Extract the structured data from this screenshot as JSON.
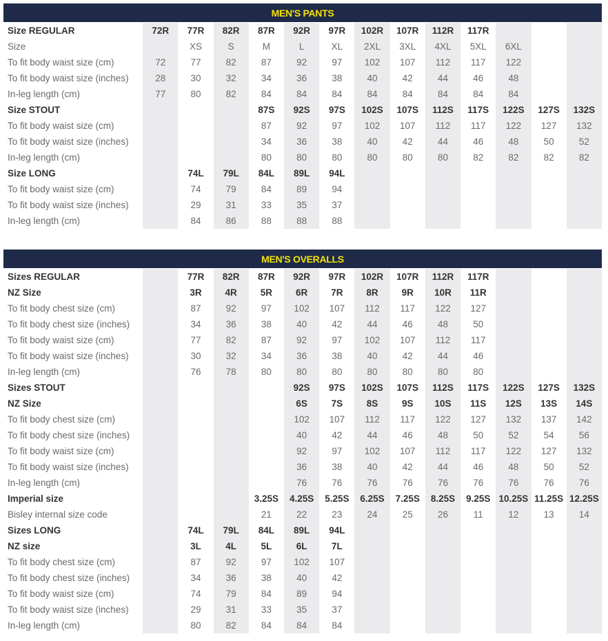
{
  "sections": [
    {
      "title": "MEN'S PANTS",
      "colors": {
        "header_bg": "#1e2a47",
        "header_text": "#f5e10a",
        "shade": "#ebebed"
      },
      "rows": [
        {
          "label": "Size REGULAR",
          "bold": true,
          "cells": [
            "72R",
            "77R",
            "82R",
            "87R",
            "92R",
            "97R",
            "102R",
            "107R",
            "112R",
            "117R",
            "",
            "",
            ""
          ]
        },
        {
          "label": "Size",
          "bold": false,
          "cells": [
            "",
            "XS",
            "S",
            "M",
            "L",
            "XL",
            "2XL",
            "3XL",
            "4XL",
            "5XL",
            "6XL",
            "",
            ""
          ]
        },
        {
          "label": "To fit body waist size (cm)",
          "bold": false,
          "cells": [
            "72",
            "77",
            "82",
            "87",
            "92",
            "97",
            "102",
            "107",
            "112",
            "117",
            "122",
            "",
            ""
          ]
        },
        {
          "label": "To fit body waist size (inches)",
          "bold": false,
          "cells": [
            "28",
            "30",
            "32",
            "34",
            "36",
            "38",
            "40",
            "42",
            "44",
            "46",
            "48",
            "",
            ""
          ]
        },
        {
          "label": "In-leg length (cm)",
          "bold": false,
          "cells": [
            "77",
            "80",
            "82",
            "84",
            "84",
            "84",
            "84",
            "84",
            "84",
            "84",
            "84",
            "",
            ""
          ]
        },
        {
          "label": "Size STOUT",
          "bold": true,
          "cells": [
            "",
            "",
            "",
            "87S",
            "92S",
            "97S",
            "102S",
            "107S",
            "112S",
            "117S",
            "122S",
            "127S",
            "132S"
          ]
        },
        {
          "label": "To fit body waist size (cm)",
          "bold": false,
          "cells": [
            "",
            "",
            "",
            "87",
            "92",
            "97",
            "102",
            "107",
            "112",
            "117",
            "122",
            "127",
            "132"
          ]
        },
        {
          "label": "To fit body waist size (inches)",
          "bold": false,
          "cells": [
            "",
            "",
            "",
            "34",
            "36",
            "38",
            "40",
            "42",
            "44",
            "46",
            "48",
            "50",
            "52"
          ]
        },
        {
          "label": "In-leg length (cm)",
          "bold": false,
          "cells": [
            "",
            "",
            "",
            "80",
            "80",
            "80",
            "80",
            "80",
            "80",
            "82",
            "82",
            "82",
            "82"
          ]
        },
        {
          "label": "Size LONG",
          "bold": true,
          "cells": [
            "",
            "74L",
            "79L",
            "84L",
            "89L",
            "94L",
            "",
            "",
            "",
            "",
            "",
            "",
            ""
          ]
        },
        {
          "label": "To fit body waist size (cm)",
          "bold": false,
          "cells": [
            "",
            "74",
            "79",
            "84",
            "89",
            "94",
            "",
            "",
            "",
            "",
            "",
            "",
            ""
          ]
        },
        {
          "label": "To fit body waist size (inches)",
          "bold": false,
          "cells": [
            "",
            "29",
            "31",
            "33",
            "35",
            "37",
            "",
            "",
            "",
            "",
            "",
            "",
            ""
          ]
        },
        {
          "label": "In-leg length (cm)",
          "bold": false,
          "cells": [
            "",
            "84",
            "86",
            "88",
            "88",
            "88",
            "",
            "",
            "",
            "",
            "",
            "",
            ""
          ]
        }
      ]
    },
    {
      "title": "MEN'S OVERALLS",
      "rows": [
        {
          "label": "Sizes REGULAR",
          "bold": true,
          "cells": [
            "",
            "77R",
            "82R",
            "87R",
            "92R",
            "97R",
            "102R",
            "107R",
            "112R",
            "117R",
            "",
            "",
            ""
          ]
        },
        {
          "label": "NZ Size",
          "bold": true,
          "cells": [
            "",
            "3R",
            "4R",
            "5R",
            "6R",
            "7R",
            "8R",
            "9R",
            "10R",
            "11R",
            "",
            "",
            ""
          ]
        },
        {
          "label": "To fit body chest size (cm)",
          "bold": false,
          "cells": [
            "",
            "87",
            "92",
            "97",
            "102",
            "107",
            "112",
            "117",
            "122",
            "127",
            "",
            "",
            ""
          ]
        },
        {
          "label": "To fit body chest size (inches)",
          "bold": false,
          "cells": [
            "",
            "34",
            "36",
            "38",
            "40",
            "42",
            "44",
            "46",
            "48",
            "50",
            "",
            "",
            ""
          ]
        },
        {
          "label": "To fit body waist size (cm)",
          "bold": false,
          "cells": [
            "",
            "77",
            "82",
            "87",
            "92",
            "97",
            "102",
            "107",
            "112",
            "117",
            "",
            "",
            ""
          ]
        },
        {
          "label": "To fit body waist size (inches)",
          "bold": false,
          "cells": [
            "",
            "30",
            "32",
            "34",
            "36",
            "38",
            "40",
            "42",
            "44",
            "46",
            "",
            "",
            ""
          ]
        },
        {
          "label": "In-leg length (cm)",
          "bold": false,
          "cells": [
            "",
            "76",
            "78",
            "80",
            "80",
            "80",
            "80",
            "80",
            "80",
            "80",
            "",
            "",
            ""
          ]
        },
        {
          "label": "Sizes STOUT",
          "bold": true,
          "cells": [
            "",
            "",
            "",
            "",
            "92S",
            "97S",
            "102S",
            "107S",
            "112S",
            "117S",
            "122S",
            "127S",
            "132S"
          ]
        },
        {
          "label": "NZ Size",
          "bold": true,
          "cells": [
            "",
            "",
            "",
            "",
            "6S",
            "7S",
            "8S",
            "9S",
            "10S",
            "11S",
            "12S",
            "13S",
            "14S"
          ]
        },
        {
          "label": "To fit body chest size (cm)",
          "bold": false,
          "cells": [
            "",
            "",
            "",
            "",
            "102",
            "107",
            "112",
            "117",
            "122",
            "127",
            "132",
            "137",
            "142"
          ]
        },
        {
          "label": "To fit body chest size (inches)",
          "bold": false,
          "cells": [
            "",
            "",
            "",
            "",
            "40",
            "42",
            "44",
            "46",
            "48",
            "50",
            "52",
            "54",
            "56"
          ]
        },
        {
          "label": "To fit body waist size (cm)",
          "bold": false,
          "cells": [
            "",
            "",
            "",
            "",
            "92",
            "97",
            "102",
            "107",
            "112",
            "117",
            "122",
            "127",
            "132"
          ]
        },
        {
          "label": "To fit body waist size (inches)",
          "bold": false,
          "cells": [
            "",
            "",
            "",
            "",
            "36",
            "38",
            "40",
            "42",
            "44",
            "46",
            "48",
            "50",
            "52"
          ]
        },
        {
          "label": "In-leg length (cm)",
          "bold": false,
          "cells": [
            "",
            "",
            "",
            "",
            "76",
            "76",
            "76",
            "76",
            "76",
            "76",
            "76",
            "76",
            "76"
          ]
        },
        {
          "label": "Imperial size",
          "bold": true,
          "cells": [
            "",
            "",
            "",
            "3.25S",
            "4.25S",
            "5.25S",
            "6.25S",
            "7.25S",
            "8.25S",
            "9.25S",
            "10.25S",
            "11.25S",
            "12.25S"
          ]
        },
        {
          "label": "Bisley internal size code",
          "bold": false,
          "cells": [
            "",
            "",
            "",
            "21",
            "22",
            "23",
            "24",
            "25",
            "26",
            "11",
            "12",
            "13",
            "14"
          ]
        },
        {
          "label": "Sizes LONG",
          "bold": true,
          "cells": [
            "",
            "74L",
            "79L",
            "84L",
            "89L",
            "94L",
            "",
            "",
            "",
            "",
            "",
            "",
            ""
          ]
        },
        {
          "label": "NZ size",
          "bold": true,
          "cells": [
            "",
            "3L",
            "4L",
            "5L",
            "6L",
            "7L",
            "",
            "",
            "",
            "",
            "",
            "",
            ""
          ]
        },
        {
          "label": "To fit body chest size (cm)",
          "bold": false,
          "cells": [
            "",
            "87",
            "92",
            "97",
            "102",
            "107",
            "",
            "",
            "",
            "",
            "",
            "",
            ""
          ]
        },
        {
          "label": "To fit body chest size (inches)",
          "bold": false,
          "cells": [
            "",
            "34",
            "36",
            "38",
            "40",
            "42",
            "",
            "",
            "",
            "",
            "",
            "",
            ""
          ]
        },
        {
          "label": "To fit body waist size (cm)",
          "bold": false,
          "cells": [
            "",
            "74",
            "79",
            "84",
            "89",
            "94",
            "",
            "",
            "",
            "",
            "",
            "",
            ""
          ]
        },
        {
          "label": "To fit body waist size (inches)",
          "bold": false,
          "cells": [
            "",
            "29",
            "31",
            "33",
            "35",
            "37",
            "",
            "",
            "",
            "",
            "",
            "",
            ""
          ]
        },
        {
          "label": "In-leg length (cm)",
          "bold": false,
          "cells": [
            "",
            "80",
            "82",
            "84",
            "84",
            "84",
            "",
            "",
            "",
            "",
            "",
            "",
            ""
          ]
        }
      ]
    }
  ]
}
